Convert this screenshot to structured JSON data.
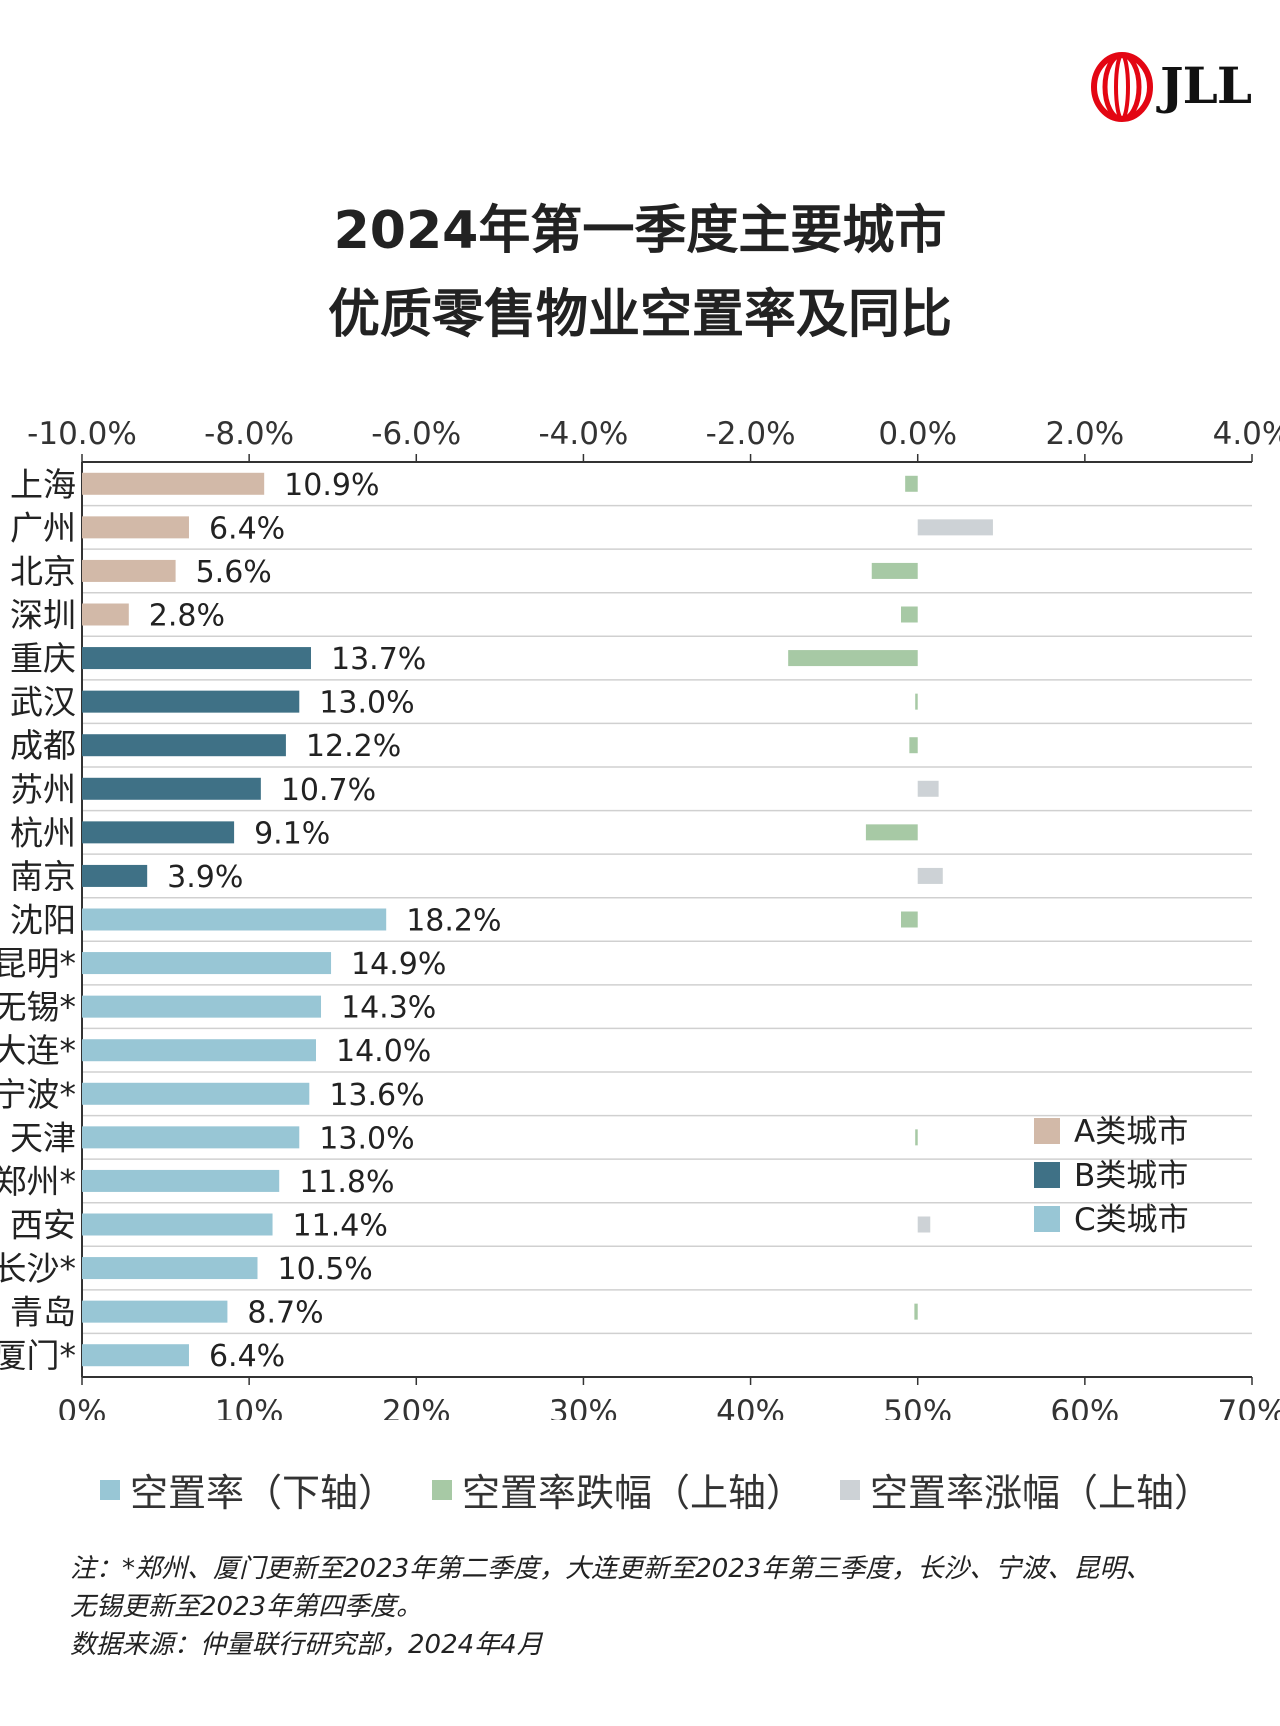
{
  "brand": {
    "name": "JLL",
    "color": "#e30613"
  },
  "title": {
    "line1": "2024年第一季度主要城市",
    "line2": "优质零售物业空置率及同比"
  },
  "chart_data": {
    "type": "bar",
    "title": "2024年第一季度主要城市优质零售物业空置率及同比",
    "categories": [
      "上海",
      "广州",
      "北京",
      "深圳",
      "重庆",
      "武汉",
      "成都",
      "苏州",
      "杭州",
      "南京",
      "沈阳",
      "昆明*",
      "无锡*",
      "大连*",
      "宁波*",
      "天津",
      "郑州*",
      "西安",
      "长沙*",
      "青岛",
      "厦门*"
    ],
    "city_class": [
      "A",
      "A",
      "A",
      "A",
      "B",
      "B",
      "B",
      "B",
      "B",
      "B",
      "C",
      "C",
      "C",
      "C",
      "C",
      "C",
      "C",
      "C",
      "C",
      "C",
      "C"
    ],
    "series": [
      {
        "name": "空置率（下轴）",
        "axis": "bottom",
        "unit": "%",
        "values": [
          10.9,
          6.4,
          5.6,
          2.8,
          13.7,
          13.0,
          12.2,
          10.7,
          9.1,
          3.9,
          18.2,
          14.9,
          14.3,
          14.0,
          13.6,
          13.0,
          11.8,
          11.4,
          10.5,
          8.7,
          6.4
        ],
        "labels": [
          "10.9%",
          "6.4%",
          "5.6%",
          "2.8%",
          "13.7%",
          "13.0%",
          "12.2%",
          "10.7%",
          "9.1%",
          "3.9%",
          "18.2%",
          "14.9%",
          "14.3%",
          "14.0%",
          "13.6%",
          "13.0%",
          "11.8%",
          "11.4%",
          "10.5%",
          "8.7%",
          "6.4%"
        ]
      },
      {
        "name": "空置率跌幅（上轴）/ 空置率涨幅（上轴）",
        "axis": "top",
        "unit": "%",
        "values": [
          -0.15,
          0.9,
          -0.55,
          -0.2,
          -1.55,
          -0.03,
          -0.1,
          0.25,
          -0.62,
          0.3,
          -0.2,
          null,
          null,
          null,
          null,
          -0.03,
          null,
          0.15,
          null,
          -0.04,
          null
        ]
      }
    ],
    "bottom_axis": {
      "range": [
        0,
        70
      ],
      "ticks": [
        "0%",
        "10%",
        "20%",
        "30%",
        "40%",
        "50%",
        "60%",
        "70%"
      ]
    },
    "top_axis": {
      "range": [
        -10,
        4
      ],
      "ticks": [
        "-10.0%",
        "-8.0%",
        "-6.0%",
        "-4.0%",
        "-2.0%",
        "0.0%",
        "2.0%",
        "4.0%"
      ]
    },
    "legend_classes": [
      {
        "label": "A类城市",
        "color": "#d2b9a8"
      },
      {
        "label": "B类城市",
        "color": "#3f7186"
      },
      {
        "label": "C类城市",
        "color": "#98c6d5"
      }
    ],
    "legend_placement": "bottom-right",
    "colors": {
      "decrease": "#a7c9a5",
      "increase": "#cdd2d6",
      "grid": "#d0d0d0",
      "axis": "#333333"
    },
    "grid": true
  },
  "legend_bottom": [
    {
      "label": "空置率（下轴）",
      "color": "#98c6d5"
    },
    {
      "label": "空置率跌幅（上轴）",
      "color": "#a7c9a5"
    },
    {
      "label": "空置率涨幅（上轴）",
      "color": "#cdd2d6"
    }
  ],
  "notes": {
    "line1": "注：*郑州、厦门更新至2023年第二季度，大连更新至2023年第三季度，长沙、宁波、昆明、",
    "line2": "无锡更新至2023年第四季度。",
    "line3": "数据来源：仲量联行研究部，2024年4月"
  }
}
